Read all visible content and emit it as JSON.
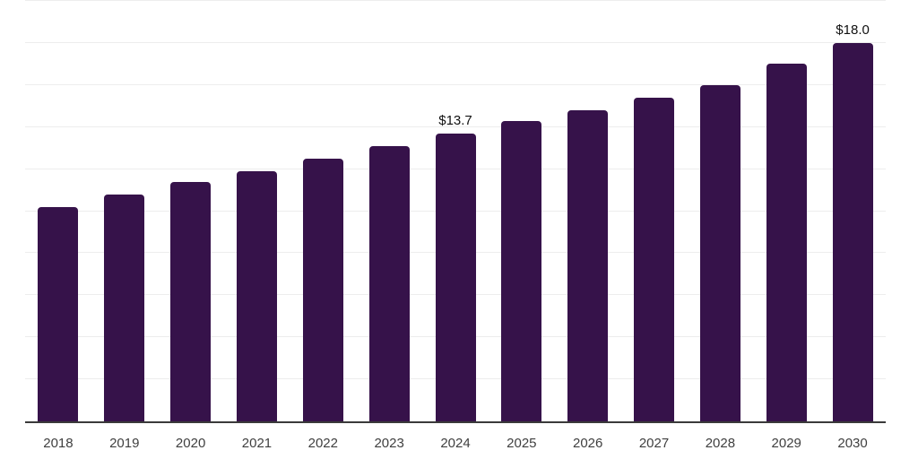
{
  "chart_data": {
    "type": "bar",
    "title": "",
    "xlabel": "",
    "ylabel": "",
    "categories": [
      "2018",
      "2019",
      "2020",
      "2021",
      "2022",
      "2023",
      "2024",
      "2025",
      "2026",
      "2027",
      "2028",
      "2029",
      "2030"
    ],
    "values": [
      10.2,
      10.8,
      11.4,
      11.9,
      12.5,
      13.1,
      13.7,
      14.3,
      14.8,
      15.4,
      16.0,
      17.0,
      18.0
    ],
    "data_labels": [
      {
        "index": 6,
        "text": "$13.7"
      },
      {
        "index": 12,
        "text": "$18.0"
      }
    ],
    "ylim": [
      0,
      20
    ],
    "gridline_step": 2,
    "grid": "horizontal gridlines only, no y tick labels",
    "legend": "none",
    "colors": {
      "bar": "#36124a",
      "axis_line": "#3a3a3a",
      "gridline": "#ededed",
      "value_label": "#111111",
      "tick_label": "#3f3f3f",
      "background": "#ffffff"
    }
  }
}
